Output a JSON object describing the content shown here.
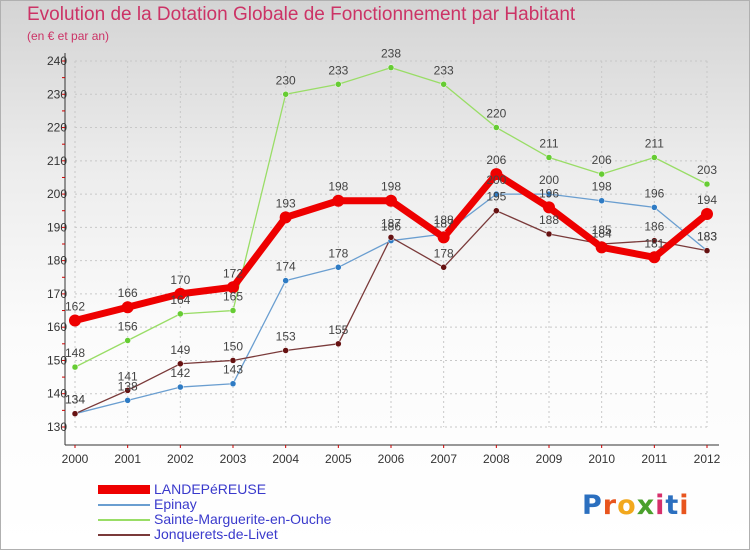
{
  "title": "Evolution de la Dotation Globale de Fonctionnement par Habitant",
  "subtitle": "(en € et par an)",
  "logo": {
    "text": "Proxiti",
    "letter_colors": [
      "#2b6fbf",
      "#e8551e",
      "#f2a81d",
      "#4aa02c",
      "#d62f6b",
      "#2b6fbf",
      "#e8551e"
    ]
  },
  "chart_data": {
    "type": "line",
    "x": [
      "2000",
      "2001",
      "2002",
      "2003",
      "2004",
      "2005",
      "2006",
      "2007",
      "2008",
      "2009",
      "2010",
      "2011",
      "2012"
    ],
    "ylim": [
      130,
      240
    ],
    "yticks": [
      130,
      140,
      150,
      160,
      170,
      180,
      190,
      200,
      210,
      220,
      230,
      240
    ],
    "grid": true,
    "legend_position": "bottom-left",
    "series": [
      {
        "name": "LANDEPéREUSE",
        "color": "#ee0000",
        "width": 7,
        "marker": 6,
        "values": [
          162,
          166,
          170,
          172,
          193,
          198,
          198,
          187,
          206,
          196,
          184,
          181,
          194
        ],
        "labels": [
          "162",
          "166",
          "170",
          "172",
          "193",
          "198",
          "198",
          "187",
          "206",
          "196",
          "184",
          "181",
          "194"
        ]
      },
      {
        "name": "Epinay",
        "color": "#6a9ed0",
        "width": 1.3,
        "marker": 3,
        "marker_color": "#2e7bc4",
        "values": [
          134,
          138,
          142,
          143,
          174,
          178,
          186,
          188,
          200,
          200,
          198,
          196,
          183
        ],
        "labels": [
          "134",
          "138",
          "142",
          "143",
          "174",
          "178",
          "186",
          "188",
          "200",
          "200",
          "198",
          "196",
          "183"
        ]
      },
      {
        "name": "Sainte-Marguerite-en-Ouche",
        "color": "#99dd66",
        "width": 1.3,
        "marker": 3,
        "marker_color": "#66cc33",
        "values": [
          148,
          156,
          164,
          165,
          230,
          233,
          238,
          233,
          220,
          211,
          206,
          211,
          203
        ],
        "labels": [
          "148",
          "156",
          "164",
          "165",
          "230",
          "233",
          "238",
          "233",
          "220",
          "211",
          "206",
          "211",
          "203"
        ]
      },
      {
        "name": "Jonquerets-de-Livet",
        "color": "#7a3a3a",
        "width": 1.3,
        "marker": 3,
        "marker_color": "#661111",
        "values": [
          134,
          141,
          149,
          150,
          153,
          155,
          187,
          178,
          195,
          188,
          185,
          186,
          183
        ],
        "labels": [
          "134",
          "141",
          "149",
          "150",
          "153",
          "155",
          "187",
          "178",
          "195",
          "188",
          "185",
          "186",
          "183"
        ]
      }
    ]
  }
}
